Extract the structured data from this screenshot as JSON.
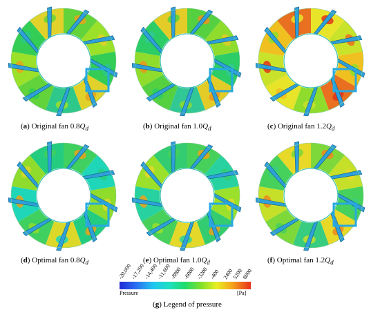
{
  "panels": [
    {
      "letter": "a",
      "text": " Original fan 0.8",
      "q": "Q",
      "sub": "d",
      "palette": [
        "#63d33b",
        "#9be12a",
        "#33cc55",
        "#e0d22a",
        "#2ec88a"
      ],
      "hot": "#e8a21c"
    },
    {
      "letter": "b",
      "text": " Original fan 1.0",
      "q": "Q",
      "sub": "d",
      "palette": [
        "#55d040",
        "#8fdc2c",
        "#2ccc66",
        "#e4cc28",
        "#31c896"
      ],
      "hot": "#ec9420"
    },
    {
      "letter": "c",
      "text": " Original fan 1.2",
      "q": "Q",
      "sub": "d",
      "palette": [
        "#e8e42a",
        "#c9e22a",
        "#f0c020",
        "#e87020",
        "#8fdc2c"
      ],
      "hot": "#e0341a"
    },
    {
      "letter": "d",
      "text": " Optimal fan 0.8",
      "q": "Q",
      "sub": "d",
      "palette": [
        "#3fd060",
        "#1fd6b8",
        "#8fdc2c",
        "#24cc80",
        "#dcd82a"
      ],
      "hot": "#e8a21c"
    },
    {
      "letter": "e",
      "text": " Optimal fan 1.0",
      "q": "Q",
      "sub": "d",
      "palette": [
        "#47d05a",
        "#28d2a0",
        "#9be02a",
        "#34cc70",
        "#e4d82a"
      ],
      "hot": "#eca21c"
    },
    {
      "letter": "f",
      "text": " Optimal fan 1.2",
      "q": "Q",
      "sub": "d",
      "palette": [
        "#7ed83a",
        "#c6e02a",
        "#46d05c",
        "#e8d828",
        "#38cc80"
      ],
      "hot": "#ec8820"
    }
  ],
  "legend": {
    "ticks": [
      "-20,000",
      "-17,200",
      "-14,400",
      "-11,600",
      "-8800",
      "-6000",
      "-3200",
      "-400",
      "2400",
      "5200",
      "8000"
    ],
    "left_label": "Pressure",
    "right_label": "[Pa]",
    "caption_letter": "g",
    "caption_text": " Legend of pressure"
  },
  "colors": {
    "highlight_box": "#27a9e1",
    "blade": "#2fa0d8"
  }
}
